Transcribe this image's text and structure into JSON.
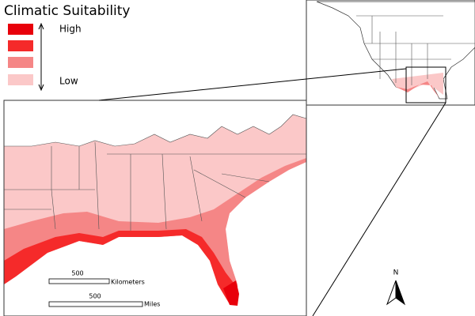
{
  "title": "Climatic Suitability",
  "legend": {
    "high": "High",
    "low": "Low",
    "colors": [
      "#e8000b",
      "#f52a2a",
      "#f58686",
      "#fbc8c8"
    ]
  },
  "scale_bars": [
    {
      "value": "500",
      "unit": "Kilometers"
    },
    {
      "value": "500",
      "unit": "Miles"
    }
  ],
  "north": "N"
}
